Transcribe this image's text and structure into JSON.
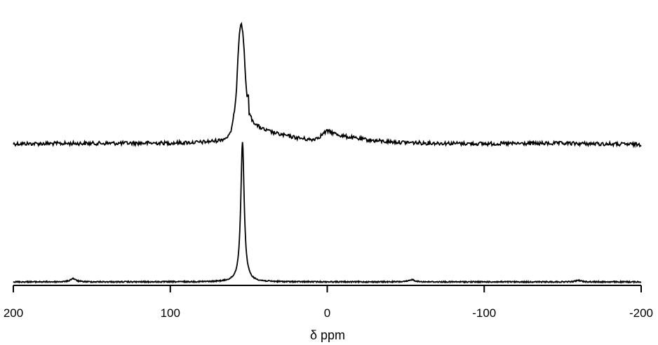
{
  "chart_data": {
    "type": "line",
    "title": "",
    "xlabel": "δ ppm",
    "ylabel": "",
    "xlim": [
      200,
      -200
    ],
    "x_reversed": true,
    "x_ticks": [
      200,
      100,
      0,
      -100,
      -200
    ],
    "x_tick_labels": [
      "200",
      "100",
      "0",
      "-100",
      "-200"
    ],
    "y_ticks": [],
    "grid": false,
    "legend": "none",
    "stacked_offset": true,
    "series": [
      {
        "color": "#000000",
        "style": "noisy",
        "baseline": 0.72,
        "peak_x": [
          200,
          150,
          100,
          80,
          70,
          65,
          62,
          60,
          58,
          57,
          56,
          55,
          54,
          53,
          52,
          51,
          50,
          48,
          45,
          40,
          30,
          20,
          10,
          5,
          2,
          0,
          -2,
          -5,
          -10,
          -20,
          -30,
          -40,
          -60,
          -100,
          -150,
          -200
        ],
        "peak_y": [
          0.72,
          0.73,
          0.74,
          0.76,
          0.8,
          0.86,
          0.95,
          1.3,
          2.0,
          2.9,
          3.6,
          3.85,
          3.7,
          3.2,
          2.4,
          1.75,
          1.55,
          1.35,
          1.2,
          1.08,
          0.96,
          0.88,
          0.82,
          0.9,
          1.0,
          1.05,
          1.03,
          0.98,
          0.92,
          0.85,
          0.8,
          0.77,
          0.74,
          0.72,
          0.73,
          0.7
        ],
        "spike_x": 50.5,
        "spike_y": 1.95
      },
      {
        "color": "#000000",
        "style": "sharp",
        "baseline": 0.0,
        "peak_center": 54,
        "peak_height": 3.7,
        "peak_halfwidth": 1.3,
        "minor_peaks_x": [
          162,
          -54,
          -160
        ],
        "minor_peaks_y": [
          0.09,
          0.06,
          0.04
        ]
      }
    ]
  }
}
